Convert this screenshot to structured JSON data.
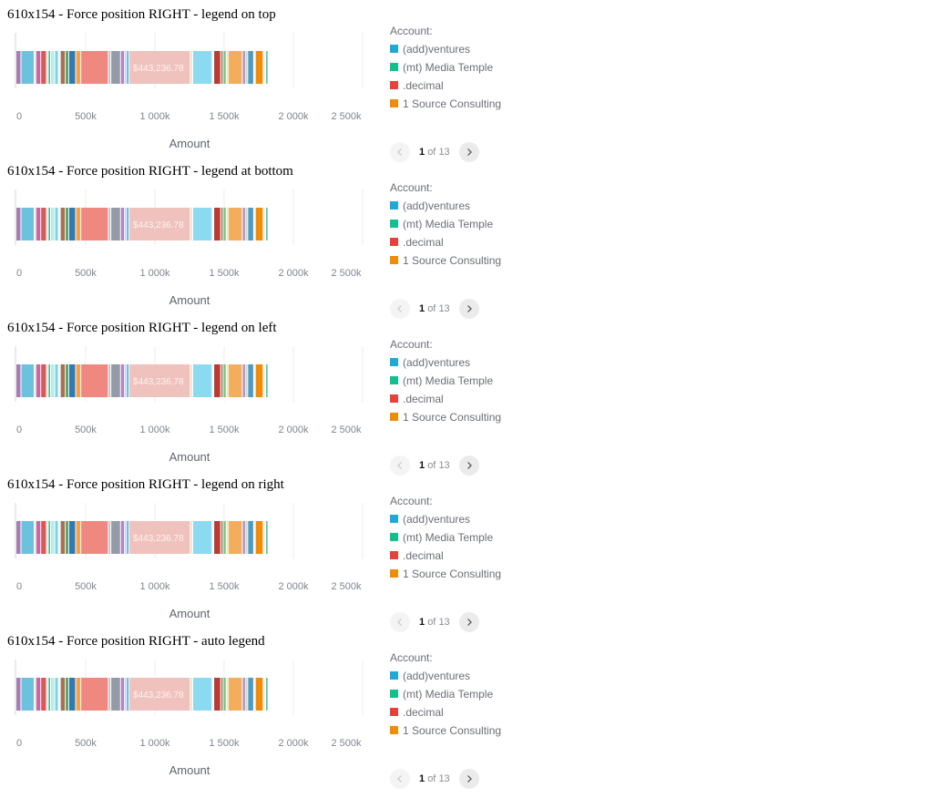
{
  "sections": [
    {
      "title": "610x154 - Force position RIGHT - legend on top"
    },
    {
      "title": "610x154 - Force position RIGHT - legend at bottom"
    },
    {
      "title": "610x154 - Force position RIGHT - legend on left"
    },
    {
      "title": "610x154 - Force position RIGHT - legend on right"
    },
    {
      "title": "610x154 - Force position RIGHT - auto legend"
    }
  ],
  "legend": {
    "title": "Account:",
    "items": [
      {
        "label": "(add)ventures",
        "color": "#20a8d8"
      },
      {
        "label": "(mt) Media Temple",
        "color": "#13bf8f"
      },
      {
        "label": ".decimal",
        "color": "#e6423b"
      },
      {
        "label": "1 Source Consulting",
        "color": "#f08c0a"
      }
    ],
    "pager": {
      "current": "1",
      "of": "of",
      "total": "13"
    }
  },
  "chart_data": {
    "type": "bar",
    "orientation": "horizontal",
    "stacked": true,
    "xlabel": "Amount",
    "xlim": [
      0,
      2500000
    ],
    "x_ticks": [
      0,
      500000,
      1000000,
      1500000,
      2000000,
      2500000
    ],
    "x_tick_labels": [
      "0",
      "500k",
      "1 000k",
      "1 500k",
      "2 000k",
      "2 500k"
    ],
    "grid": true,
    "segments": [
      {
        "value": 36000,
        "color": "#a77db3"
      },
      {
        "value": 96000,
        "color": "#6cc2de"
      },
      {
        "value": 11000,
        "color": "#fbe2c6"
      },
      {
        "value": 36000,
        "color": "#c56ba2"
      },
      {
        "value": 41000,
        "color": "#d9565a"
      },
      {
        "value": 13000,
        "color": "#f5d6ad"
      },
      {
        "value": 17000,
        "color": "#3fba9f"
      },
      {
        "value": 30000,
        "color": "#c1e9e3"
      },
      {
        "value": 26000,
        "color": "#7dd3e5"
      },
      {
        "value": 14000,
        "color": "#dff3f5"
      },
      {
        "value": 36000,
        "color": "#a77055"
      },
      {
        "value": 25000,
        "color": "#5f9f5c"
      },
      {
        "value": 50000,
        "color": "#2f7ab3"
      },
      {
        "value": 37000,
        "color": "#f3a24d"
      },
      {
        "value": 199000,
        "color": "#ef8880"
      },
      {
        "value": 18000,
        "color": "#b8c2cc"
      },
      {
        "value": 70000,
        "color": "#939ba6"
      },
      {
        "value": 29000,
        "color": "#b483c2"
      },
      {
        "value": 15000,
        "color": "#d7c3df"
      },
      {
        "value": 17000,
        "color": "#2eb4e2"
      },
      {
        "value": 443236.78,
        "color": "#f0c2bd",
        "label": "$443,236.78"
      },
      {
        "value": 17000,
        "color": "#fbdfc9"
      },
      {
        "value": 140000,
        "color": "#8bdaf0"
      },
      {
        "value": 12000,
        "color": "#e0f4f9"
      },
      {
        "value": 50000,
        "color": "#b93b32"
      },
      {
        "value": 18000,
        "color": "#a08067"
      },
      {
        "value": 22000,
        "color": "#7bc27c"
      },
      {
        "value": 13000,
        "color": "#d6e1d3"
      },
      {
        "value": 103000,
        "color": "#f2ae5c"
      },
      {
        "value": 25000,
        "color": "#b896c6"
      },
      {
        "value": 14000,
        "color": "#b1d5c3"
      },
      {
        "value": 43000,
        "color": "#4c9bc0"
      },
      {
        "value": 12000,
        "color": "#fde9d6"
      },
      {
        "value": 57000,
        "color": "#f08c0a"
      },
      {
        "value": 19000,
        "color": "#fdf0e3"
      },
      {
        "value": 15000,
        "color": "#13bf8f"
      }
    ]
  }
}
